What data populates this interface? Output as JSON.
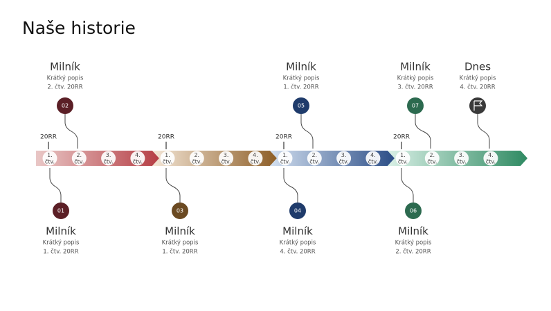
{
  "title": "Naše historie",
  "years": [
    "20RR",
    "20RR",
    "20RR",
    "20RR"
  ],
  "quarters": [
    {
      "number": "1.",
      "unit": "čtv."
    },
    {
      "number": "2.",
      "unit": "čtv."
    },
    {
      "number": "3.",
      "unit": "čtv."
    },
    {
      "number": "4.",
      "unit": "čtv."
    },
    {
      "number": "1.",
      "unit": "čtv."
    },
    {
      "number": "2.",
      "unit": "čtv."
    },
    {
      "number": "3.",
      "unit": "čtv."
    },
    {
      "number": "4.",
      "unit": "čtv."
    },
    {
      "number": "1.",
      "unit": "čtv."
    },
    {
      "number": "2.",
      "unit": "čtv."
    },
    {
      "number": "3.",
      "unit": "čtv."
    },
    {
      "number": "4.",
      "unit": "čtv."
    },
    {
      "number": "1.",
      "unit": "čtv."
    },
    {
      "number": "2.",
      "unit": "čtv."
    },
    {
      "number": "3.",
      "unit": "čtv."
    },
    {
      "number": "4.",
      "unit": "čtv."
    }
  ],
  "milestones": [
    {
      "number": "01",
      "title": "Milník",
      "description": "Krátký popis",
      "date": "1. čtv. 20RR"
    },
    {
      "number": "02",
      "title": "Milník",
      "description": "Krátký popis",
      "date": "2. čtv. 20RR"
    },
    {
      "number": "03",
      "title": "Milník",
      "description": "Krátký popis",
      "date": "1. čtv. 20RR"
    },
    {
      "number": "04",
      "title": "Milník",
      "description": "Krátký popis",
      "date": "4. čtv. 20RR"
    },
    {
      "number": "05",
      "title": "Milník",
      "description": "Krátký popis",
      "date": "1. čtv. 20RR"
    },
    {
      "number": "06",
      "title": "Milník",
      "description": "Krátký popis",
      "date": "2. čtv. 20RR"
    },
    {
      "number": "07",
      "title": "Milník",
      "description": "Krátký popis",
      "date": "3. čtv. 20RR"
    },
    {
      "title": "Dnes",
      "description": "Krátký popis",
      "date": "4. čtv. 20RR"
    }
  ]
}
